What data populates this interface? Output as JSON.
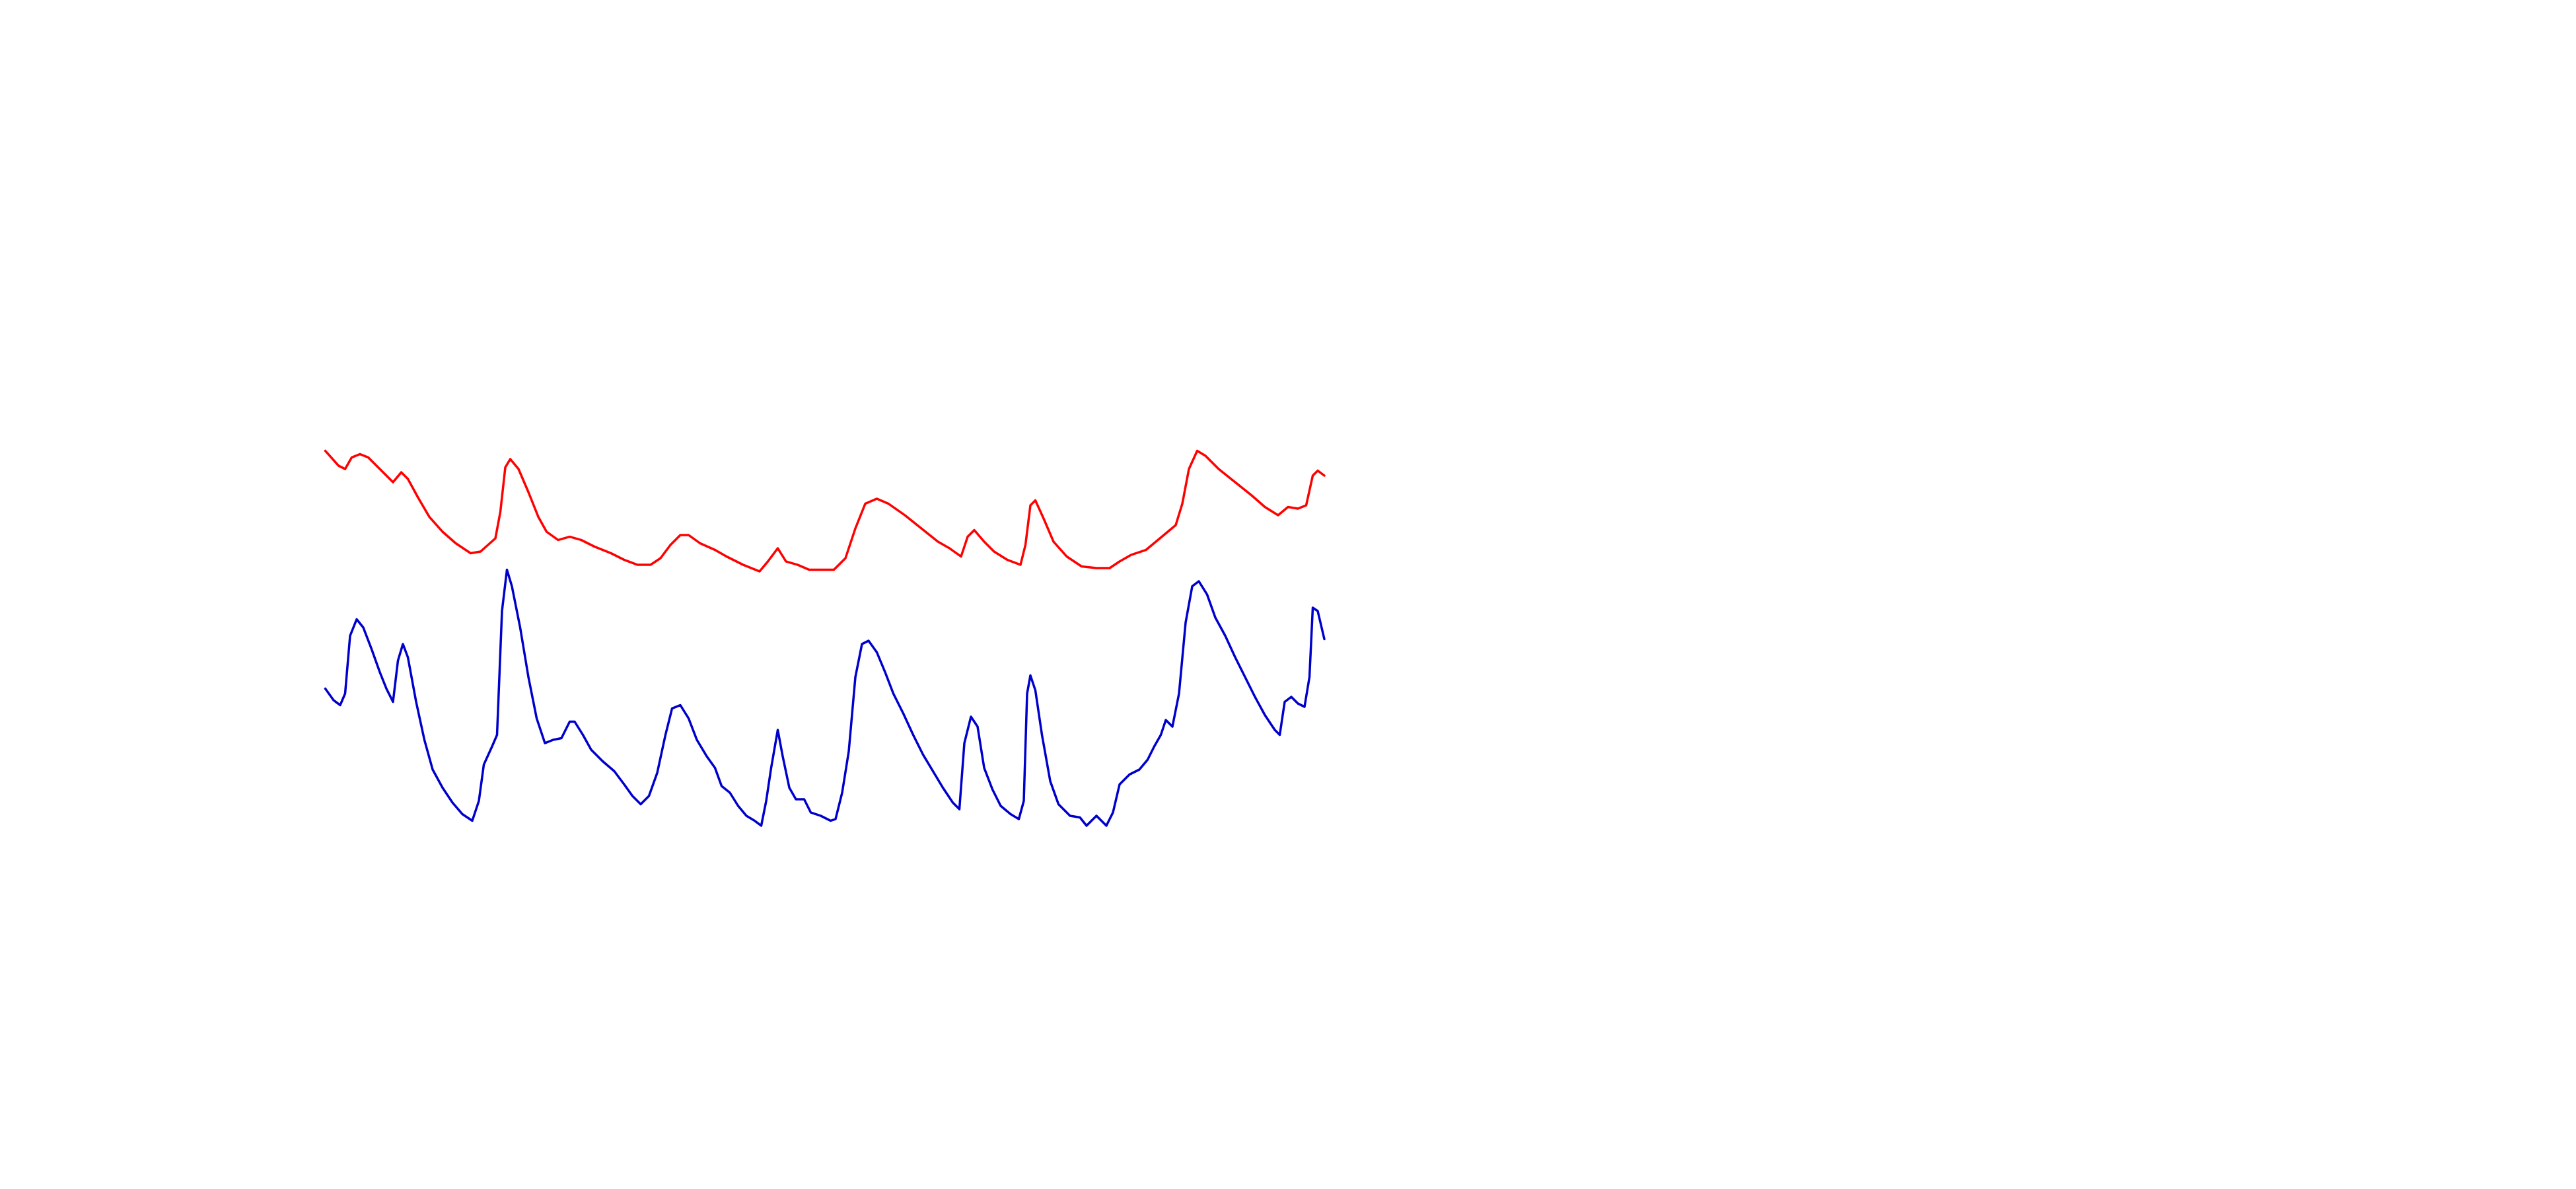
{
  "chart_data": {
    "type": "line",
    "xlim": [
      0,
      1560
    ],
    "ylim": [
      0,
      720
    ],
    "series": [
      {
        "color": "#ff0000",
        "x": [
          197,
          205,
          209,
          213,
          218,
          223,
          230,
          238,
          243,
          247,
          253,
          260,
          268,
          276,
          285,
          291,
          300,
          303,
          306,
          309,
          314,
          320,
          326,
          331,
          338,
          345,
          352,
          360,
          370,
          378,
          386,
          394,
          400,
          406,
          412,
          417,
          424,
          433,
          440,
          450,
          460,
          465,
          471,
          476,
          483,
          490,
          498,
          505,
          512,
          518,
          524,
          531,
          538,
          548,
          558,
          568,
          575,
          582,
          586,
          590,
          596,
          602,
          610,
          618,
          621,
          624,
          627,
          632,
          638,
          646,
          655,
          664,
          672,
          678,
          685,
          694,
          700,
          706,
          712,
          716,
          720,
          725,
          730,
          738,
          748,
          758,
          766,
          774,
          780,
          786,
          791,
          795,
          798,
          802
        ],
        "values": [
          447,
          438,
          436,
          443,
          445,
          443,
          436,
          428,
          434,
          430,
          419,
          407,
          398,
          391,
          385,
          386,
          394,
          410,
          437,
          442,
          436,
          422,
          407,
          398,
          393,
          395,
          393,
          389,
          385,
          381,
          378,
          378,
          382,
          390,
          396,
          396,
          391,
          387,
          383,
          378,
          374,
          380,
          388,
          380,
          378,
          375,
          375,
          375,
          382,
          400,
          415,
          418,
          415,
          408,
          400,
          392,
          388,
          383,
          395,
          399,
          392,
          386,
          381,
          378,
          390,
          414,
          417,
          406,
          392,
          383,
          377,
          376,
          376,
          380,
          384,
          387,
          392,
          397,
          402,
          415,
          436,
          447,
          444,
          436,
          428,
          420,
          413,
          408,
          413,
          412,
          414,
          432,
          435,
          432
        ]
      },
      {
        "color": "#0000cc",
        "x": [
          197,
          202,
          206,
          209,
          212,
          216,
          220,
          225,
          230,
          234,
          238,
          241,
          244,
          247,
          252,
          257,
          262,
          268,
          274,
          280,
          286,
          290,
          293,
          298,
          301,
          304,
          307,
          310,
          315,
          320,
          325,
          330,
          335,
          340,
          345,
          348,
          353,
          358,
          365,
          372,
          378,
          383,
          388,
          393,
          398,
          403,
          407,
          412,
          417,
          422,
          428,
          433,
          437,
          442,
          447,
          452,
          457,
          461,
          464,
          467,
          471,
          474,
          478,
          482,
          487,
          491,
          497,
          503,
          506,
          510,
          514,
          518,
          522,
          526,
          531,
          536,
          541,
          547,
          553,
          559,
          565,
          571,
          577,
          581,
          584,
          588,
          592,
          596,
          601,
          606,
          612,
          617,
          620,
          622,
          624,
          627,
          631,
          636,
          641,
          648,
          654,
          658,
          664,
          670,
          674,
          678,
          684,
          690,
          695,
          699,
          703,
          706,
          710,
          714,
          718,
          722,
          726,
          731,
          736,
          742,
          748,
          754,
          760,
          766,
          772,
          775,
          778,
          782,
          786,
          790,
          793,
          795,
          798,
          802
        ],
        "values": [
          303,
          296,
          293,
          300,
          335,
          345,
          340,
          327,
          313,
          303,
          295,
          320,
          330,
          322,
          295,
          272,
          254,
          243,
          234,
          227,
          223,
          235,
          257,
          268,
          275,
          350,
          375,
          365,
          340,
          310,
          285,
          270,
          272,
          273,
          283,
          283,
          275,
          266,
          259,
          253,
          245,
          238,
          233,
          238,
          252,
          275,
          291,
          293,
          285,
          272,
          262,
          255,
          244,
          240,
          232,
          226,
          223,
          220,
          235,
          255,
          278,
          262,
          243,
          236,
          236,
          228,
          226,
          223,
          224,
          240,
          265,
          310,
          330,
          332,
          325,
          313,
          300,
          288,
          275,
          263,
          253,
          243,
          234,
          230,
          270,
          286,
          280,
          255,
          242,
          232,
          227,
          224,
          235,
          300,
          311,
          302,
          275,
          247,
          233,
          226,
          225,
          220,
          226,
          220,
          228,
          245,
          251,
          254,
          260,
          268,
          275,
          284,
          280,
          300,
          343,
          365,
          368,
          360,
          346,
          335,
          322,
          310,
          298,
          287,
          278,
          275,
          295,
          298,
          294,
          292,
          310,
          352,
          350,
          333
        ]
      }
    ]
  }
}
